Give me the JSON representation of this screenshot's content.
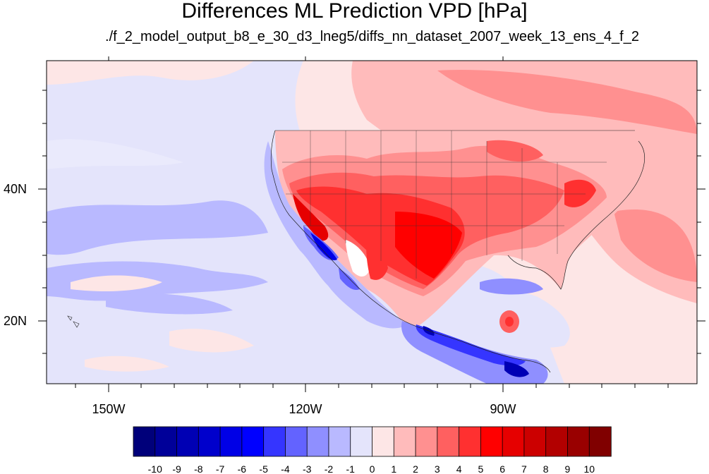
{
  "title": "Differences ML Prediction VPD [hPa]",
  "subtitle": "./f_2_model_output_b8_e_30_d3_lneg5/diffs_nn_dataset_2007_week_13_ens_4_f_2",
  "axes": {
    "lon_labels": [
      "150W",
      "120W",
      "90W"
    ],
    "lat_labels": [
      "40N",
      "20N"
    ]
  },
  "colorbar": {
    "labels": [
      "-10",
      "-9",
      "-8",
      "-7",
      "-6",
      "-5",
      "-4",
      "-3",
      "-2",
      "-1",
      "0",
      "1",
      "2",
      "3",
      "4",
      "5",
      "6",
      "7",
      "8",
      "9",
      "10"
    ],
    "colors": [
      "#00007a",
      "#000099",
      "#0000b4",
      "#0000cc",
      "#0000e6",
      "#0000ff",
      "#3535ff",
      "#6363ff",
      "#8f8fff",
      "#b9b9ff",
      "#e4e4fb",
      "#fde6e6",
      "#ffbbbb",
      "#ff9090",
      "#ff6060",
      "#ff3030",
      "#ff0000",
      "#e60000",
      "#cc0000",
      "#b20000",
      "#990000",
      "#800000"
    ]
  }
}
